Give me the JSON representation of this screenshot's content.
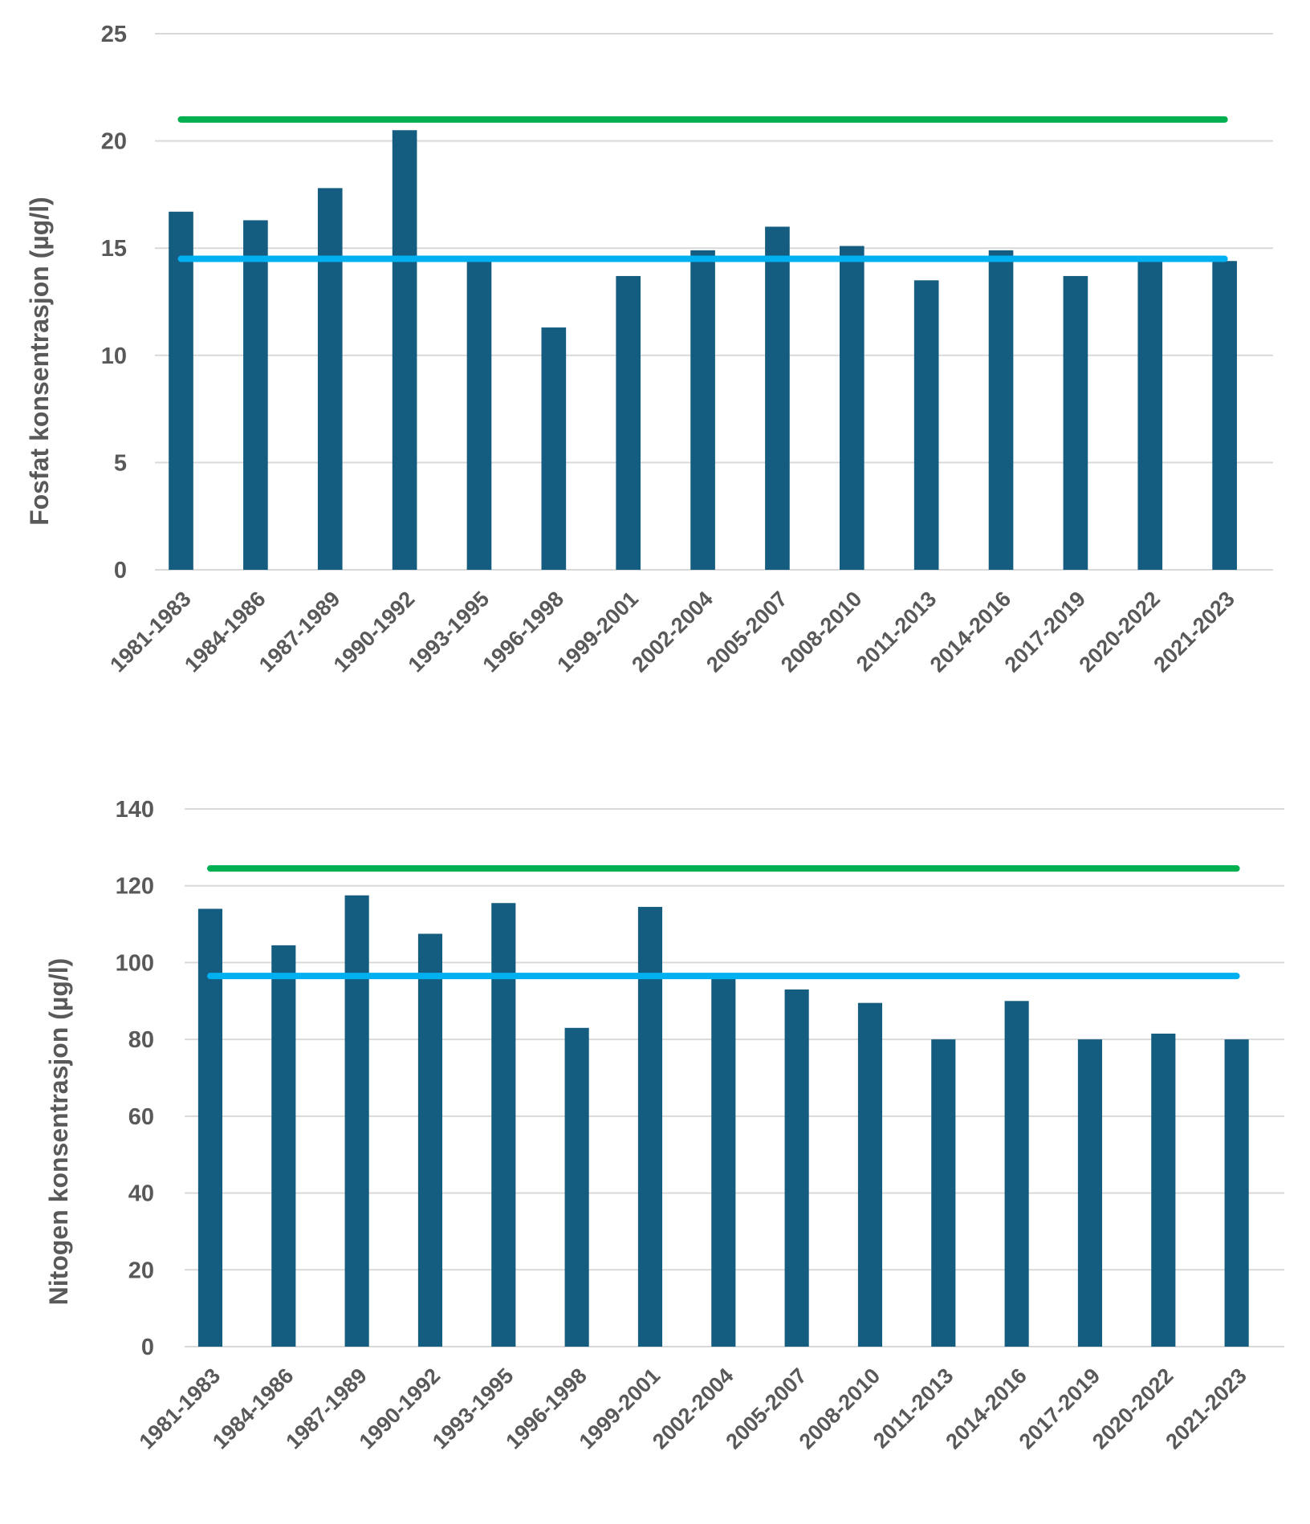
{
  "colors": {
    "bar": "#155d80",
    "upper_line": "#00b050",
    "mean_line": "#00b0f0",
    "grid": "#d9d9d9",
    "text": "#595959"
  },
  "chart_data": [
    {
      "type": "bar",
      "title": "",
      "xlabel": "",
      "ylabel": "Fosfat konsentrasjon (µg/l)",
      "ylim": [
        0,
        25
      ],
      "yticks": [
        0,
        5,
        10,
        15,
        20,
        25
      ],
      "grid": true,
      "legend": "none",
      "categories": [
        "1981-1983",
        "1984-1986",
        "1987-1989",
        "1990-1992",
        "1993-1995",
        "1996-1998",
        "1999-2001",
        "2002-2004",
        "2005-2007",
        "2008-2010",
        "2011-2013",
        "2014-2016",
        "2017-2019",
        "2020-2022",
        "2021-2023"
      ],
      "values": [
        16.7,
        16.3,
        17.8,
        20.5,
        14.4,
        11.3,
        13.7,
        14.9,
        16.0,
        15.1,
        13.5,
        14.9,
        13.7,
        14.5,
        14.4
      ],
      "reference_lines": [
        {
          "value": 21.0,
          "color": "#00b050"
        },
        {
          "value": 14.5,
          "color": "#00b0f0"
        }
      ]
    },
    {
      "type": "bar",
      "title": "",
      "xlabel": "",
      "ylabel": "Nitogen konsentrasjon (µg/l)",
      "ylim": [
        0,
        140
      ],
      "yticks": [
        0,
        20,
        40,
        60,
        80,
        100,
        120,
        140
      ],
      "grid": true,
      "legend": "none",
      "categories": [
        "1981-1983",
        "1984-1986",
        "1987-1989",
        "1990-1992",
        "1993-1995",
        "1996-1998",
        "1999-2001",
        "2002-2004",
        "2005-2007",
        "2008-2010",
        "2011-2013",
        "2014-2016",
        "2017-2019",
        "2020-2022",
        "2021-2023"
      ],
      "values": [
        114,
        104.5,
        117.5,
        107.5,
        115.5,
        83,
        114.5,
        96,
        93,
        89.5,
        80,
        90,
        80,
        81.5,
        80
      ],
      "reference_lines": [
        {
          "value": 124.5,
          "color": "#00b050"
        },
        {
          "value": 96.5,
          "color": "#00b0f0"
        }
      ]
    }
  ]
}
